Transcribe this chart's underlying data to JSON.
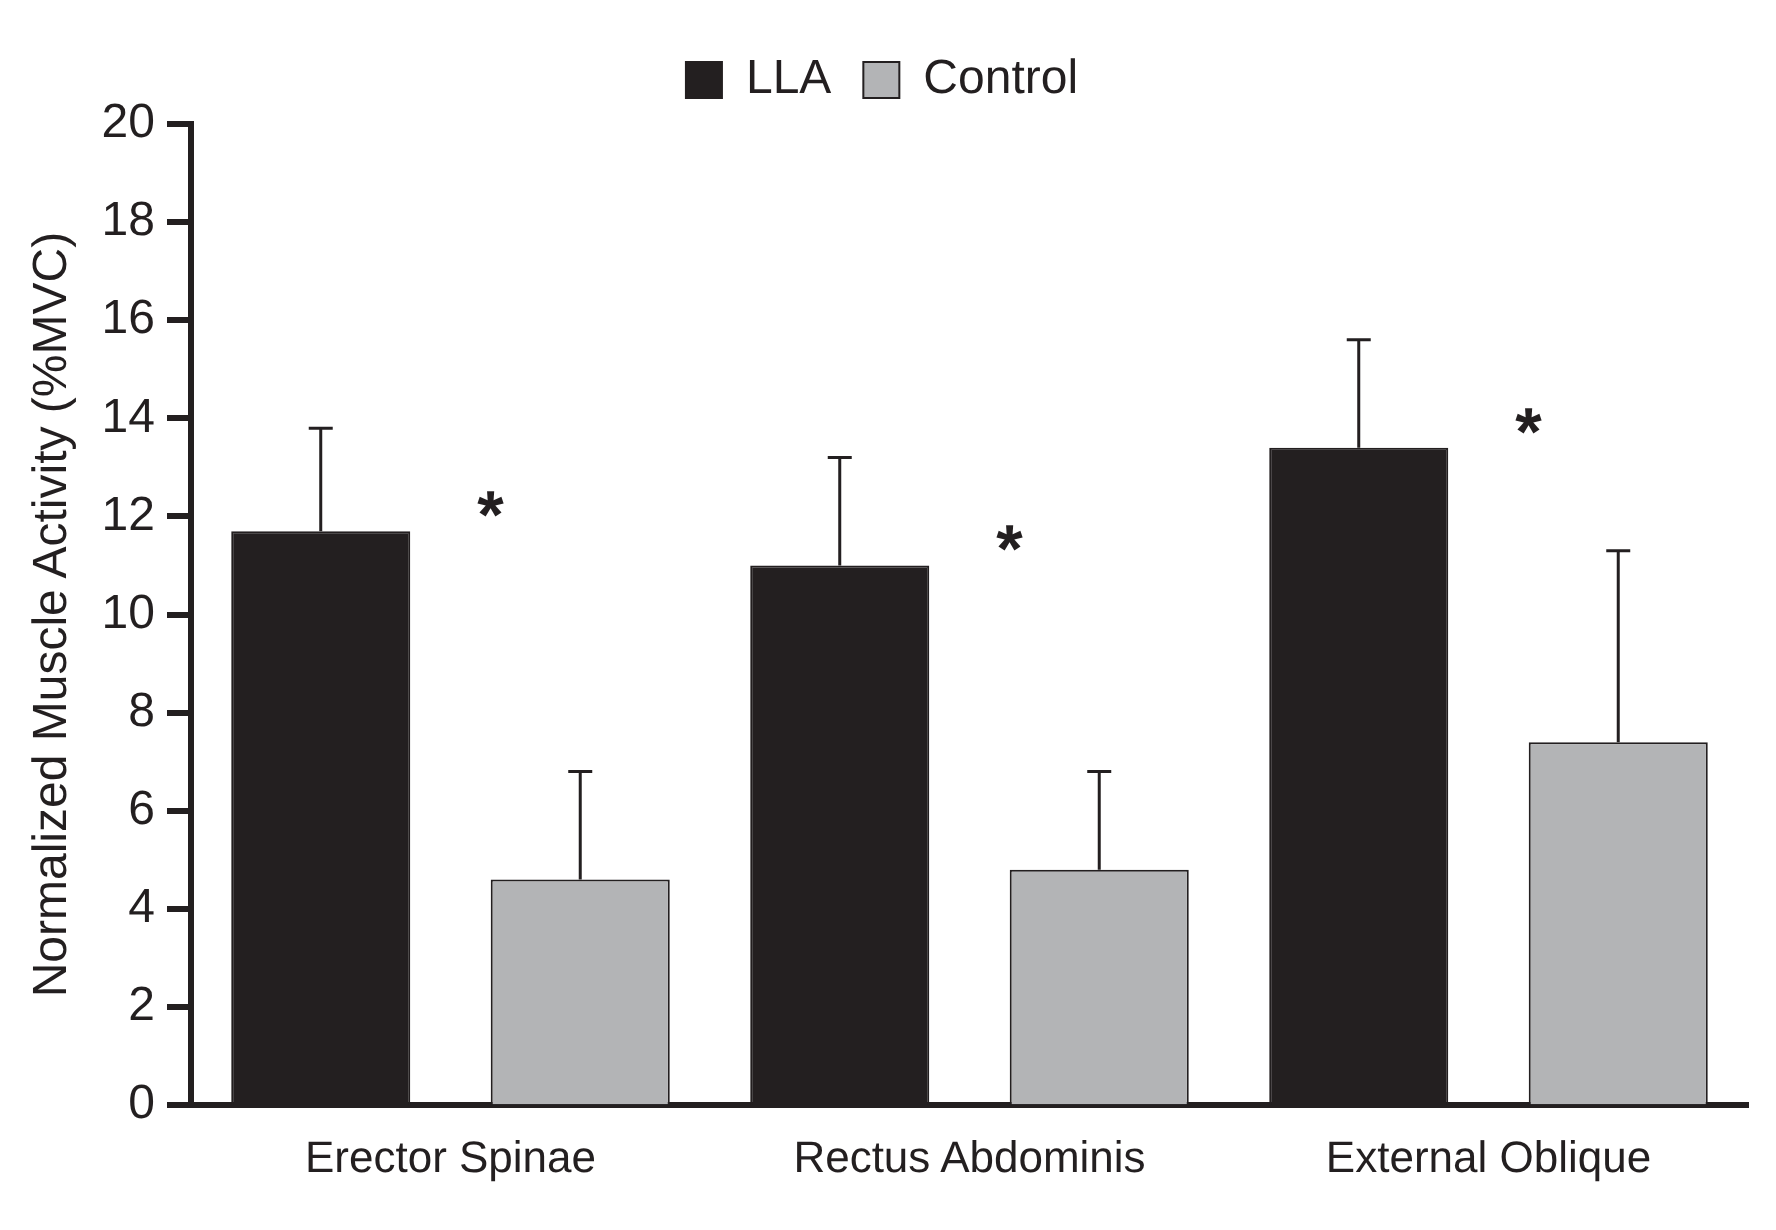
{
  "chart_data": {
    "type": "bar",
    "ylabel": "Normalized Muscle Activity (%MVC)",
    "categories": [
      "Erector Spinae",
      "Rectus Abdominis",
      "External Oblique"
    ],
    "series": [
      {
        "name": "LLA",
        "color": "#231f20",
        "values": [
          11.7,
          11.0,
          13.4
        ],
        "errors": [
          [
            11.7,
            13.8
          ],
          [
            11.0,
            13.2
          ],
          [
            13.4,
            15.6
          ]
        ]
      },
      {
        "name": "Control",
        "color": "#b3b4b6",
        "values": [
          4.6,
          4.8,
          7.4
        ],
        "errors": [
          [
            4.6,
            6.8
          ],
          [
            4.8,
            6.8
          ],
          [
            7.4,
            11.3
          ]
        ]
      }
    ],
    "ylim": [
      0,
      20
    ],
    "yticks": [
      0,
      2,
      4,
      6,
      8,
      10,
      12,
      14,
      16,
      18,
      20
    ],
    "grid": false,
    "legend": "top",
    "annotations": [
      "*",
      "*",
      "*"
    ]
  }
}
